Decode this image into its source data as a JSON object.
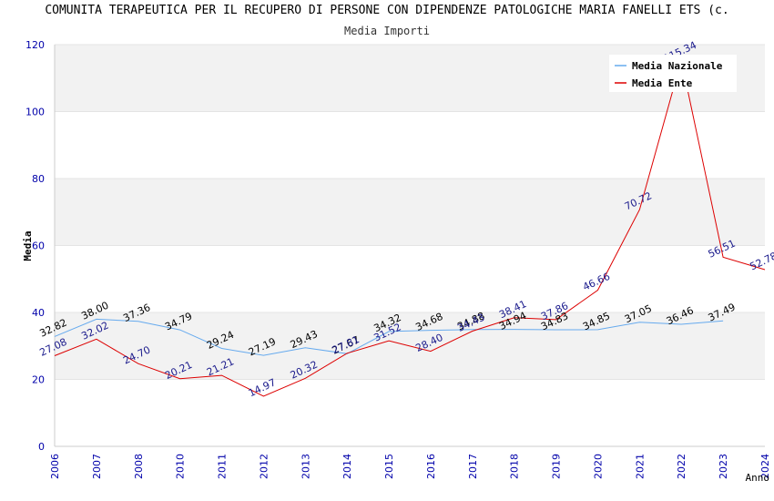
{
  "chart_data": {
    "type": "line",
    "title": "COMUNITA TERAPEUTICA PER IL RECUPERO DI PERSONE CON DIPENDENZE PATOLOGICHE MARIA FANELLI ETS (c.",
    "subtitle": "Media Importi",
    "xlabel": "Anno",
    "ylabel": "Media",
    "ylim": [
      0,
      120
    ],
    "yticks": [
      0,
      20,
      40,
      60,
      80,
      100,
      120
    ],
    "categories": [
      "2006",
      "2007",
      "2008",
      "2010",
      "2011",
      "2012",
      "2013",
      "2014",
      "2015",
      "2016",
      "2017",
      "2018",
      "2019",
      "2020",
      "2021",
      "2022",
      "2023",
      "2024"
    ],
    "series": [
      {
        "name": "Media Nazionale",
        "color": "#66aaee",
        "values": [
          32.82,
          38.0,
          37.36,
          34.79,
          29.24,
          27.19,
          29.43,
          27.67,
          34.32,
          34.68,
          34.88,
          34.94,
          34.83,
          34.85,
          37.05,
          36.46,
          37.49,
          null
        ],
        "labels": [
          "32.82",
          "38.00",
          "37.36",
          "34.79",
          "29.24",
          "27.19",
          "29.43",
          "27.67",
          "34.32",
          "34.68",
          "34.88",
          "34.94",
          "34.83",
          "34.85",
          "37.05",
          "36.46",
          "37.49",
          ""
        ]
      },
      {
        "name": "Media Ente",
        "color": "#dd0000",
        "values": [
          27.08,
          32.02,
          24.7,
          20.21,
          21.21,
          14.97,
          20.32,
          27.81,
          31.52,
          28.4,
          34.43,
          38.41,
          37.86,
          46.66,
          70.72,
          115.34,
          56.51,
          52.78
        ],
        "labels": [
          "27.08",
          "32.02",
          "24.70",
          "20.21",
          "21.21",
          "14.97",
          "20.32",
          "27.81",
          "31.52",
          "28.40",
          "34.43",
          "38.41",
          "37.86",
          "46.66",
          "70.72",
          "115.34",
          "56.51",
          "52.78"
        ]
      }
    ],
    "legend": [
      "Media Nazionale",
      "Media Ente"
    ],
    "grid": true,
    "legend_position": "top-right"
  }
}
